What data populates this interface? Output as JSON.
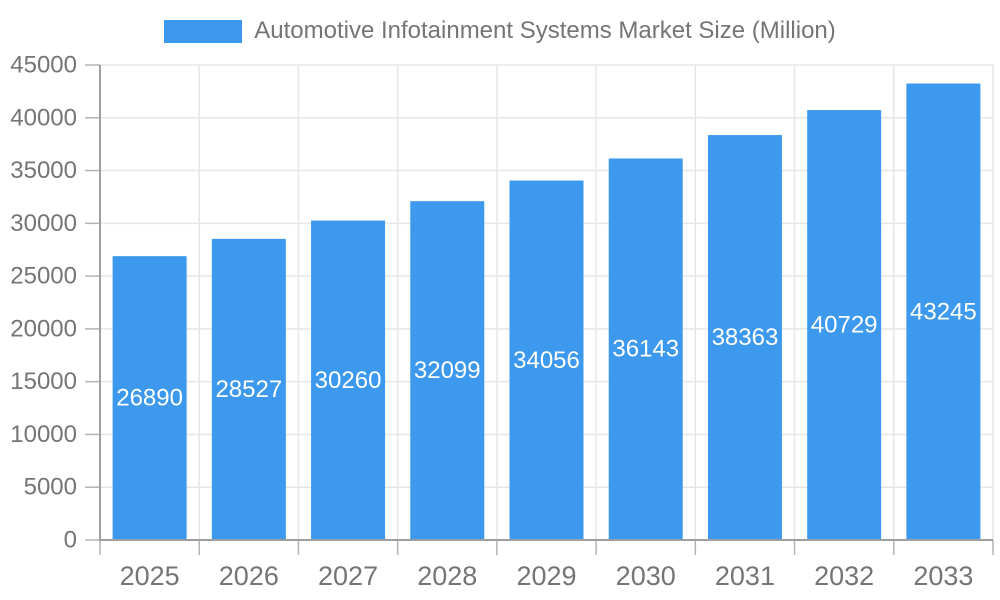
{
  "chart_data": {
    "type": "bar",
    "title": "Automotive Infotainment Systems Market Size (Million)",
    "categories": [
      "2025",
      "2026",
      "2027",
      "2028",
      "2029",
      "2030",
      "2031",
      "2032",
      "2033"
    ],
    "values": [
      26890,
      28527,
      30260,
      32099,
      34056,
      36143,
      38363,
      40729,
      43245
    ],
    "xlabel": "",
    "ylabel": "",
    "ylim": [
      0,
      45000
    ],
    "ytick_step": 5000,
    "grid": true,
    "legend_position": "top-center",
    "bar_color": "#3c99ed",
    "value_label_color": "#ffffff",
    "axis_label_color": "#757575",
    "grid_color": "#e6e6e6",
    "tick_color": "#b3b3b3",
    "axis_line_color": "#9e9e9e"
  }
}
